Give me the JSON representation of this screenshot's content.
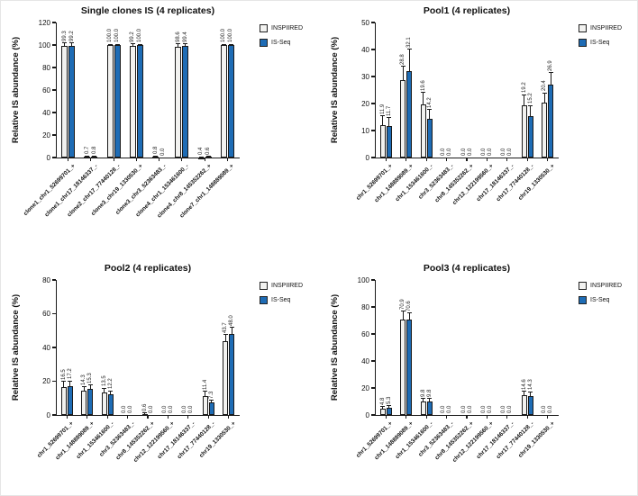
{
  "colors": {
    "inspiired_fill": "#f2f2f0",
    "isseq_fill": "#1e6cb5",
    "axis": "#1a1a1a"
  },
  "chart_data": [
    {
      "type": "bar",
      "title": "Single clones IS (4 replicates)",
      "ylabel": "Relative IS abundance (%)",
      "xlabel": "",
      "ylim": [
        0,
        120
      ],
      "yticks": [
        0,
        20,
        40,
        60,
        80,
        100,
        120
      ],
      "grid": false,
      "legend_position": "top-right",
      "categories": [
        "clone1_chr1_52699701_+",
        "clone1_chr17_18146337_-",
        "clone2_chr17_77440128_-",
        "clone3_chr19_1330530_+",
        "clone3_chr3_52363483_-",
        "clone4_chr1_153461600_-",
        "clone4_chr8_145352262_+",
        "clone7_chr1_148889089_+"
      ],
      "series": [
        {
          "name": "INSPIIRED",
          "values": [
            99.3,
            0.7,
            100.0,
            99.2,
            0.8,
            98.6,
            0.4,
            100.0
          ],
          "errors": [
            2.5,
            0.7,
            0.6,
            2.0,
            0.8,
            2.5,
            0.4,
            0.6
          ]
        },
        {
          "name": "IS-Seq",
          "values": [
            99.2,
            0.8,
            100.0,
            100.0,
            0.0,
            99.4,
            0.6,
            100.0
          ],
          "errors": [
            2.5,
            0.8,
            0.6,
            0.5,
            0.0,
            1.5,
            0.6,
            0.6
          ]
        }
      ]
    },
    {
      "type": "bar",
      "title": "Pool1 (4 replicates)",
      "ylabel": "Relative IS abundance (%)",
      "xlabel": "",
      "ylim": [
        0,
        50
      ],
      "yticks": [
        0,
        10,
        20,
        30,
        40,
        50
      ],
      "grid": false,
      "legend_position": "top-right",
      "categories": [
        "chr1_52699701_+",
        "chr1_148889089_+",
        "chr1_153461600_-",
        "chr3_52363483_-",
        "chr8_145352262_+",
        "chr12_122199560_+",
        "chr17_18146337_-",
        "chr17_77440128_-",
        "chr19_1330530_+"
      ],
      "series": [
        {
          "name": "INSPIIRED",
          "values": [
            11.9,
            28.8,
            19.6,
            0.0,
            0.0,
            0.0,
            0.0,
            19.2,
            20.4
          ],
          "errors": [
            3.5,
            5.0,
            4.5,
            0.0,
            0.0,
            0.0,
            0.0,
            4.0,
            3.5
          ]
        },
        {
          "name": "IS-Seq",
          "values": [
            11.7,
            32.1,
            14.2,
            0.0,
            0.0,
            0.0,
            0.0,
            15.2,
            26.9
          ],
          "errors": [
            3.0,
            8.0,
            3.5,
            0.0,
            0.0,
            0.0,
            0.0,
            4.0,
            4.5
          ]
        }
      ]
    },
    {
      "type": "bar",
      "title": "Pool2 (4 replicates)",
      "ylabel": "Relative IS abundance (%)",
      "xlabel": "",
      "ylim": [
        0,
        80
      ],
      "yticks": [
        0,
        20,
        40,
        60,
        80
      ],
      "grid": false,
      "legend_position": "top-right",
      "categories": [
        "chr1_52699701_+",
        "chr1_148889089_+",
        "chr1_153461600_-",
        "chr3_52363483_-",
        "chr8_145352262_+",
        "chr12_122199560_+",
        "chr17_18146337_-",
        "chr17_77440128_-",
        "chr19_1330530_+"
      ],
      "series": [
        {
          "name": "INSPIIRED",
          "values": [
            16.5,
            14.3,
            13.5,
            0.0,
            0.6,
            0.0,
            0.0,
            11.4,
            43.7
          ],
          "errors": [
            3.5,
            2.5,
            2.5,
            0.0,
            0.6,
            0.0,
            0.0,
            2.5,
            4.0
          ]
        },
        {
          "name": "IS-Seq",
          "values": [
            17.2,
            15.3,
            12.2,
            0.0,
            0.0,
            0.0,
            0.0,
            7.3,
            48.0
          ],
          "errors": [
            3.0,
            2.5,
            2.0,
            0.0,
            0.0,
            0.0,
            0.0,
            1.5,
            4.0
          ]
        }
      ]
    },
    {
      "type": "bar",
      "title": "Pool3 (4 replicates)",
      "ylabel": "Relative IS abundance (%)",
      "xlabel": "",
      "ylim": [
        0,
        100
      ],
      "yticks": [
        0,
        20,
        40,
        60,
        80,
        100
      ],
      "grid": false,
      "legend_position": "top-right",
      "categories": [
        "chr1_52699701_+",
        "chr1_148889089_+",
        "chr1_153461600_-",
        "chr3_52363483_-",
        "chr8_145352262_+",
        "chr12_122199560_+",
        "chr17_18146337_-",
        "chr17_77440128_-",
        "chr19_1330530_+"
      ],
      "series": [
        {
          "name": "INSPIIRED",
          "values": [
            4.8,
            70.9,
            9.8,
            0.0,
            0.0,
            0.0,
            0.0,
            14.6,
            0.0
          ],
          "errors": [
            1.5,
            6.0,
            2.5,
            0.0,
            0.0,
            0.0,
            0.0,
            3.0,
            0.0
          ]
        },
        {
          "name": "IS-Seq",
          "values": [
            5.3,
            70.6,
            9.8,
            0.0,
            0.0,
            0.0,
            0.0,
            14.3,
            0.0
          ],
          "errors": [
            1.5,
            5.0,
            2.5,
            0.0,
            0.0,
            0.0,
            0.0,
            3.0,
            0.0
          ]
        }
      ]
    }
  ]
}
